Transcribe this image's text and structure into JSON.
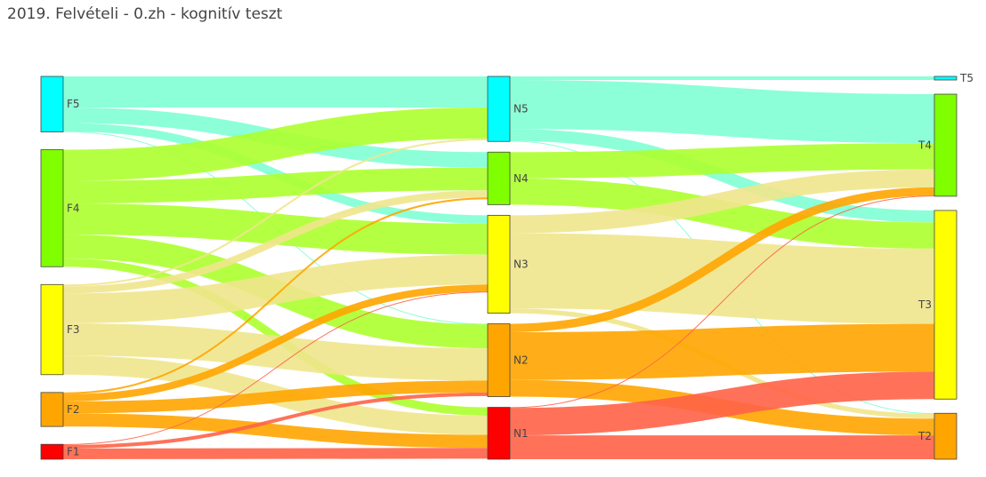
{
  "title": "2019. Felvételi - 0.zh - kognitív teszt",
  "chart_data": {
    "type": "sankey",
    "title": "2019. Felvételi - 0.zh - kognitív teszt",
    "columns": [
      [
        "F5",
        "F4",
        "F3",
        "F2",
        "F1"
      ],
      [
        "N5",
        "N4",
        "N3",
        "N2",
        "N1"
      ],
      [
        "T5",
        "T4",
        "T3",
        "T2"
      ]
    ],
    "nodes": [
      {
        "id": "F5",
        "label": "F5",
        "color": "#00FFFF"
      },
      {
        "id": "F4",
        "label": "F4",
        "color": "#7FFF00"
      },
      {
        "id": "F3",
        "label": "F3",
        "color": "#FFFF00"
      },
      {
        "id": "F2",
        "label": "F2",
        "color": "#FFA500"
      },
      {
        "id": "F1",
        "label": "F1",
        "color": "#FF0000"
      },
      {
        "id": "N5",
        "label": "N5",
        "color": "#00FFFF"
      },
      {
        "id": "N4",
        "label": "N4",
        "color": "#7FFF00"
      },
      {
        "id": "N3",
        "label": "N3",
        "color": "#FFFF00"
      },
      {
        "id": "N2",
        "label": "N2",
        "color": "#FFA500"
      },
      {
        "id": "N1",
        "label": "N1",
        "color": "#FF0000"
      },
      {
        "id": "T5",
        "label": "T5",
        "color": "#00FFFF"
      },
      {
        "id": "T4",
        "label": "T4",
        "color": "#7FFF00"
      },
      {
        "id": "T3",
        "label": "T3",
        "color": "#FFFF00"
      },
      {
        "id": "T2",
        "label": "T2",
        "color": "#FFA500"
      }
    ],
    "link_colors": {
      "F5": "#7FFFD4",
      "F4": "#ADFF2F",
      "F3": "#F0E68C",
      "F2": "#FFA500",
      "F1": "#FF6347",
      "N5": "#7FFFD4",
      "N4": "#ADFF2F",
      "N3": "#F0E68C",
      "N2": "#FFA500",
      "N1": "#FF6347"
    },
    "links": [
      {
        "source": "F5",
        "target": "N5",
        "value": 26
      },
      {
        "source": "F5",
        "target": "N4",
        "value": 13
      },
      {
        "source": "F5",
        "target": "N3",
        "value": 7
      },
      {
        "source": "F5",
        "target": "N2",
        "value": 0.5
      },
      {
        "source": "F4",
        "target": "N5",
        "value": 26
      },
      {
        "source": "F4",
        "target": "N4",
        "value": 19
      },
      {
        "source": "F4",
        "target": "N3",
        "value": 26
      },
      {
        "source": "F4",
        "target": "N2",
        "value": 20
      },
      {
        "source": "F4",
        "target": "N1",
        "value": 7
      },
      {
        "source": "F3",
        "target": "N5",
        "value": 1.5
      },
      {
        "source": "F3",
        "target": "N4",
        "value": 6
      },
      {
        "source": "F3",
        "target": "N3",
        "value": 25
      },
      {
        "source": "F3",
        "target": "N2",
        "value": 27
      },
      {
        "source": "F3",
        "target": "N1",
        "value": 16
      },
      {
        "source": "F2",
        "target": "N4",
        "value": 1.5
      },
      {
        "source": "F2",
        "target": "N3",
        "value": 6
      },
      {
        "source": "F2",
        "target": "N2",
        "value": 10
      },
      {
        "source": "F2",
        "target": "N1",
        "value": 11
      },
      {
        "source": "F1",
        "target": "N3",
        "value": 0.5
      },
      {
        "source": "F1",
        "target": "N2",
        "value": 3
      },
      {
        "source": "F1",
        "target": "N1",
        "value": 9
      },
      {
        "source": "N5",
        "target": "T5",
        "value": 3
      },
      {
        "source": "N5",
        "target": "T4",
        "value": 41
      },
      {
        "source": "N5",
        "target": "T3",
        "value": 10
      },
      {
        "source": "N5",
        "target": "T2",
        "value": 0.5
      },
      {
        "source": "N4",
        "target": "T4",
        "value": 22
      },
      {
        "source": "N4",
        "target": "T3",
        "value": 22
      },
      {
        "source": "N3",
        "target": "T4",
        "value": 15
      },
      {
        "source": "N3",
        "target": "T3",
        "value": 63
      },
      {
        "source": "N3",
        "target": "T2",
        "value": 4
      },
      {
        "source": "N2",
        "target": "T4",
        "value": 7
      },
      {
        "source": "N2",
        "target": "T3",
        "value": 40
      },
      {
        "source": "N2",
        "target": "T2",
        "value": 14
      },
      {
        "source": "N1",
        "target": "T4",
        "value": 0.5
      },
      {
        "source": "N1",
        "target": "T3",
        "value": 23
      },
      {
        "source": "N1",
        "target": "T2",
        "value": 20
      }
    ]
  }
}
